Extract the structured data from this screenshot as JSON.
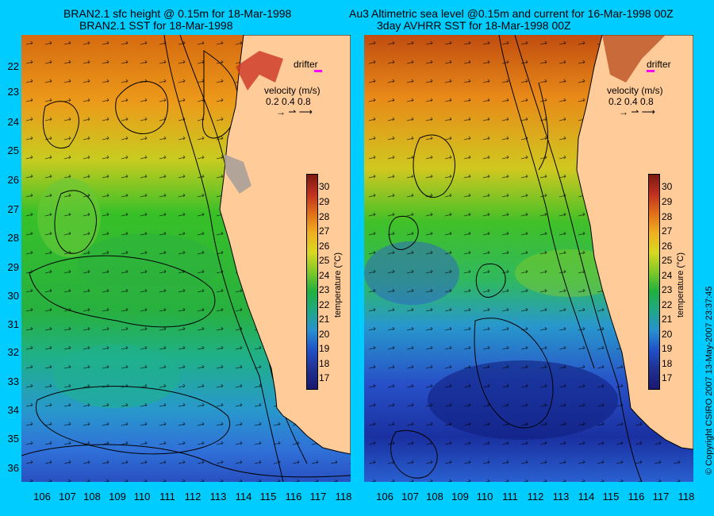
{
  "titles": {
    "left_line1": "BRAN2.1 sfc height @ 0.15m for 18-Mar-1998",
    "left_line2": "BRAN2.1 SST for 18-Mar-1998",
    "right_line1": "Au3 Altimetric sea level  @0.15m and current for 16-Mar-1998 00Z",
    "right_line2": "3day AVHRR SST for 18-Mar-1998 00Z"
  },
  "latitudes": [
    "22",
    "23",
    "24",
    "25",
    "26",
    "27",
    "28",
    "29",
    "30",
    "31",
    "32",
    "33",
    "34",
    "35",
    "36"
  ],
  "longitudes": [
    "106",
    "107",
    "108",
    "109",
    "110",
    "111",
    "112",
    "113",
    "114",
    "115",
    "116",
    "117",
    "118"
  ],
  "legend": {
    "drifter_label": "drifter",
    "velocity_label": "velocity (m/s)",
    "velocity_scale": "0.2  0.4  0.8",
    "arrow_glyphs": "→  ⇀  ⟶",
    "colorbar_title": "temperature (°C)",
    "colorbar_ticks": [
      "30",
      "29",
      "28",
      "27",
      "26",
      "25",
      "24",
      "23",
      "22",
      "21",
      "20",
      "19",
      "18",
      "17"
    ]
  },
  "copyright": "© Copyright CSIRO 2007    13-May-2007 23:37:45",
  "colors": {
    "background": "#00ccff",
    "land": "#ffcc99",
    "drifter_marker": "#ff00ff"
  },
  "map_data": {
    "lat_range": [
      "21.4S",
      "36.5S"
    ],
    "lon_range": [
      "105.5E",
      "118.2E"
    ],
    "panels": [
      "model BRAN2.1",
      "observed altimetry + AVHRR SST"
    ]
  }
}
